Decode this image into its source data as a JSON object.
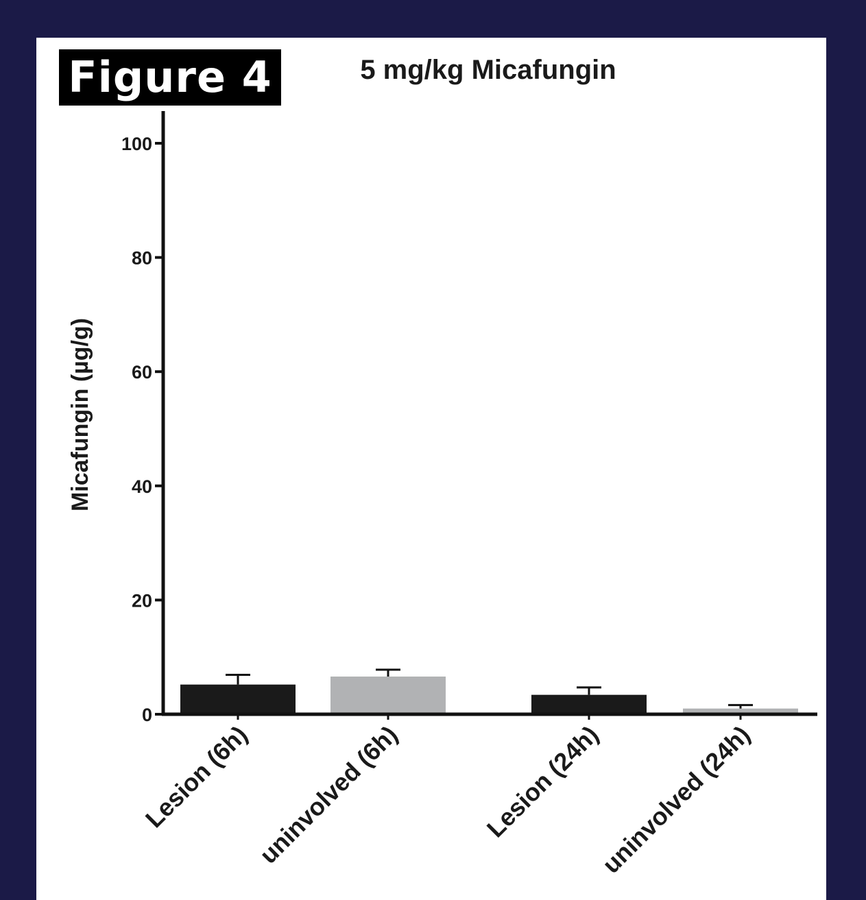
{
  "figure_label": "Figure 4",
  "colors": {
    "background": "#1b1a47",
    "panel": "#ffffff",
    "bar_dark": "#1a1a1a",
    "bar_light": "#b1b2b4",
    "axis": "#111111"
  },
  "chart_data": {
    "type": "bar",
    "title": "5 mg/kg Micafungin",
    "xlabel": "",
    "ylabel": "Micafungin (µg/g)",
    "ylim": [
      0,
      105
    ],
    "yticks": [
      0,
      20,
      40,
      60,
      80,
      100
    ],
    "grid": false,
    "categories": [
      "Lesion (6h)",
      "uninvolved (6h)",
      "Lesion (24h)",
      "uninvolved (24h)"
    ],
    "values": [
      5.2,
      6.6,
      3.4,
      1.0
    ],
    "error": [
      1.7,
      1.2,
      1.3,
      0.6
    ],
    "bar_colors": [
      "#1a1a1a",
      "#b1b2b4",
      "#1a1a1a",
      "#b1b2b4"
    ]
  }
}
